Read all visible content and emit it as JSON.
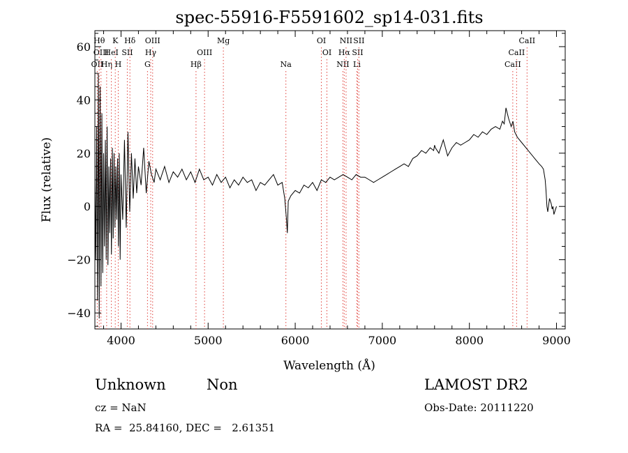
{
  "info": {
    "class_label": "Unknown",
    "subclass_label": "Non",
    "cz_text": "cz = NaN",
    "radec_text": "RA =  25.84160, DEC =   2.61351",
    "survey": "LAMOST DR2",
    "obs_date_text": "Obs-Date: 20111220"
  },
  "chart_data": {
    "type": "line",
    "title": "spec-55916-F5591602_sp14-031.fits",
    "xlabel": "Wavelength (Å)",
    "ylabel": "Flux (relative)",
    "xlim": [
      3700,
      9100
    ],
    "ylim": [
      -46,
      66
    ],
    "x_ticks": [
      4000,
      5000,
      6000,
      7000,
      8000,
      9000
    ],
    "y_ticks": [
      -40,
      -20,
      0,
      20,
      40,
      60
    ],
    "grid": false,
    "line_color": "#000000",
    "marker_color": "#e0403a",
    "line_markers": [
      {
        "wavelength": 3727,
        "label": "OII",
        "row": 3
      },
      {
        "wavelength": 3750,
        "label": "Hθ",
        "row": 1
      },
      {
        "wavelength": 3770,
        "label": "OIII",
        "row": 2
      },
      {
        "wavelength": 3835,
        "label": "Hη",
        "row": 3
      },
      {
        "wavelength": 3889,
        "label": "HeI",
        "row": 2
      },
      {
        "wavelength": 3934,
        "label": "K",
        "row": 1
      },
      {
        "wavelength": 3968,
        "label": "H",
        "row": 3
      },
      {
        "wavelength": 4072,
        "label": "SII",
        "row": 2
      },
      {
        "wavelength": 4102,
        "label": "Hδ",
        "row": 1
      },
      {
        "wavelength": 4304,
        "label": "G",
        "row": 3
      },
      {
        "wavelength": 4341,
        "label": "Hγ",
        "row": 2
      },
      {
        "wavelength": 4363,
        "label": "OIII",
        "row": 1
      },
      {
        "wavelength": 4861,
        "label": "Hβ",
        "row": 3
      },
      {
        "wavelength": 4959,
        "label": "OIII",
        "row": 2
      },
      {
        "wavelength": 5175,
        "label": "Mg",
        "row": 1
      },
      {
        "wavelength": 5893,
        "label": "Na",
        "row": 3
      },
      {
        "wavelength": 6300,
        "label": "OI",
        "row": 1
      },
      {
        "wavelength": 6364,
        "label": "OI",
        "row": 2
      },
      {
        "wavelength": 6548,
        "label": "NII",
        "row": 3
      },
      {
        "wavelength": 6563,
        "label": "Hα",
        "row": 2
      },
      {
        "wavelength": 6584,
        "label": "NII",
        "row": 1
      },
      {
        "wavelength": 6708,
        "label": "Li",
        "row": 3
      },
      {
        "wavelength": 6716,
        "label": "SII",
        "row": 2
      },
      {
        "wavelength": 6731,
        "label": "SII",
        "row": 1
      },
      {
        "wavelength": 8498,
        "label": "CaII",
        "row": 3
      },
      {
        "wavelength": 8542,
        "label": "CaII",
        "row": 2
      },
      {
        "wavelength": 8662,
        "label": "CaII",
        "row": 1
      }
    ],
    "series": [
      {
        "x": [
          3700,
          3710,
          3720,
          3730,
          3740,
          3750,
          3760,
          3770,
          3780,
          3790,
          3800,
          3810,
          3820,
          3830,
          3840,
          3850,
          3860,
          3870,
          3880,
          3890,
          3900,
          3910,
          3920,
          3930,
          3940,
          3950,
          3960,
          3970,
          3980,
          3990,
          4000,
          4020,
          4040,
          4060,
          4080,
          4100,
          4120,
          4140,
          4160,
          4180,
          4200,
          4230,
          4260,
          4290,
          4320,
          4350,
          4380,
          4400,
          4450,
          4500,
          4550,
          4600,
          4650,
          4700,
          4750,
          4800,
          4850,
          4900,
          4950,
          5000,
          5050,
          5100,
          5150,
          5200,
          5250,
          5300,
          5350,
          5400,
          5450,
          5500,
          5550,
          5600,
          5650,
          5700,
          5750,
          5800,
          5850,
          5880,
          5900,
          5910,
          5920,
          5950,
          6000,
          6050,
          6100,
          6150,
          6200,
          6250,
          6300,
          6350,
          6400,
          6450,
          6500,
          6550,
          6600,
          6650,
          6700,
          6750,
          6800,
          6850,
          6900,
          6950,
          7000,
          7050,
          7100,
          7150,
          7200,
          7250,
          7300,
          7350,
          7400,
          7450,
          7500,
          7550,
          7590,
          7600,
          7610,
          7650,
          7700,
          7750,
          7800,
          7850,
          7900,
          7950,
          8000,
          8050,
          8100,
          8150,
          8200,
          8250,
          8300,
          8350,
          8380,
          8400,
          8420,
          8450,
          8480,
          8500,
          8520,
          8550,
          8600,
          8650,
          8700,
          8750,
          8800,
          8830,
          8850,
          8870,
          8880,
          8890,
          8900,
          8920,
          8940,
          8950,
          8960,
          8970,
          9000
        ],
        "values": [
          10,
          -20,
          30,
          -35,
          50,
          -42,
          45,
          -30,
          35,
          -25,
          20,
          -15,
          25,
          -20,
          30,
          -22,
          15,
          -10,
          18,
          -18,
          22,
          -12,
          20,
          -8,
          15,
          -5,
          18,
          -15,
          20,
          -20,
          12,
          -5,
          25,
          -8,
          28,
          -2,
          20,
          3,
          18,
          5,
          15,
          8,
          22,
          5,
          17,
          12,
          9,
          14,
          10,
          15,
          9,
          13,
          11,
          14,
          10,
          13,
          9,
          14,
          10,
          11,
          8,
          12,
          9,
          11,
          7,
          10,
          8,
          11,
          9,
          10,
          6,
          9,
          8,
          10,
          12,
          8,
          9,
          3,
          -5,
          -10,
          2,
          4,
          6,
          5,
          8,
          7,
          9,
          6,
          10,
          9,
          11,
          10,
          11,
          12,
          11,
          10,
          12,
          11,
          11,
          10,
          9,
          10,
          11,
          12,
          13,
          14,
          15,
          16,
          15,
          18,
          19,
          21,
          20,
          22,
          21,
          23,
          22,
          20,
          25,
          19,
          22,
          24,
          23,
          24,
          25,
          27,
          26,
          28,
          27,
          29,
          30,
          29,
          32,
          31,
          37,
          33,
          30,
          32,
          28,
          26,
          24,
          22,
          20,
          18,
          16,
          15,
          14,
          10,
          6,
          0,
          -2,
          3,
          1,
          -1,
          0,
          -3,
          0
        ]
      }
    ]
  }
}
